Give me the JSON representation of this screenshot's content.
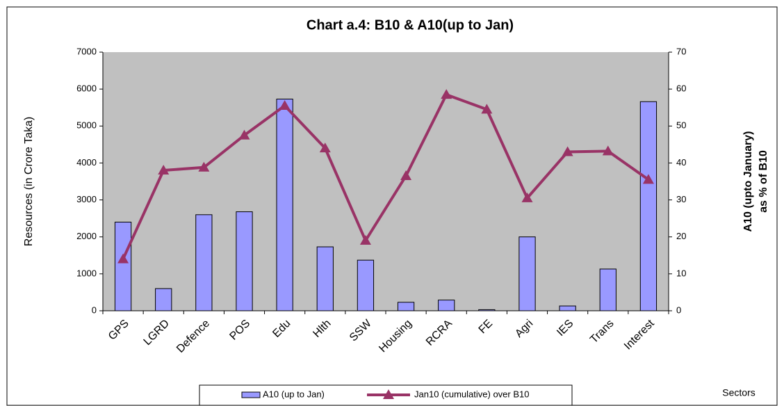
{
  "chart_data": {
    "type": "bar_line",
    "title": "Chart a.4: B10 & A10(up to Jan)",
    "y_label": "Resources (in Crore Taka)",
    "y2_label": [
      "A10 (upto January)",
      "as % of B10"
    ],
    "x_label": "Sectors",
    "categories": [
      "GPS",
      "LGRD",
      "Defence",
      "POS",
      "Edu",
      "Hlth",
      "SSW",
      "Housing",
      "RCRA",
      "FE",
      "Agri",
      "IES",
      "Trans",
      "Interest"
    ],
    "series": [
      {
        "name": "A10 (up to Jan)",
        "type": "bar",
        "color": "#9999ff",
        "values": [
          2400,
          600,
          2600,
          2680,
          5730,
          1730,
          1370,
          230,
          290,
          30,
          2000,
          130,
          1130,
          5660
        ]
      },
      {
        "name": "Jan10 (cumulative) over B10",
        "type": "line",
        "axis": "y2",
        "color": "#993366",
        "values": [
          14,
          38,
          38.8,
          47.5,
          55.5,
          44,
          19,
          36.5,
          58.5,
          54.5,
          30.5,
          43,
          43.2,
          35.5
        ]
      }
    ],
    "ylim": [
      0,
      7000
    ],
    "yticks": [
      0,
      1000,
      2000,
      3000,
      4000,
      5000,
      6000,
      7000
    ],
    "y2lim": [
      0,
      70
    ],
    "y2ticks": [
      0,
      10,
      20,
      30,
      40,
      50,
      60,
      70
    ],
    "plot_background": "#c0c0c0",
    "legend": "bottom"
  }
}
